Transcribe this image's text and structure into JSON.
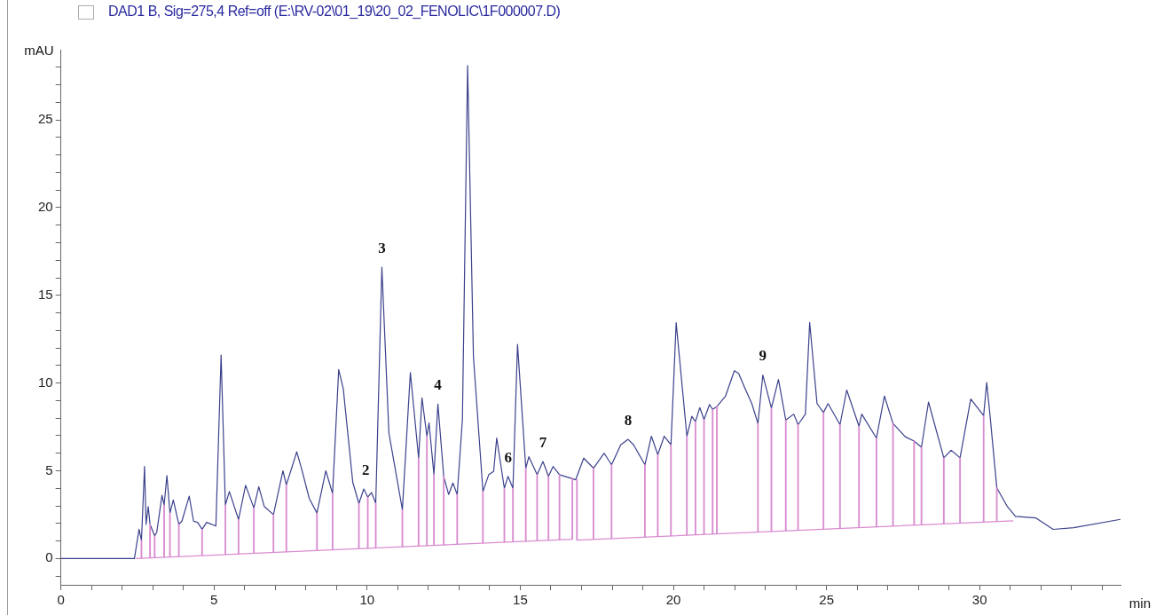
{
  "chart_data": {
    "type": "line",
    "title": "DAD1 B, Sig=275,4 Ref=off (E:\\RV-02\\01_19\\20_02_FENOLIC\\1F000007.D)",
    "xlabel": "min",
    "ylabel": "mAU",
    "grid": false,
    "legend": false,
    "marker": "none",
    "line_style": "solid",
    "xlim": [
      0,
      34.6
    ],
    "ylim": [
      -1.5,
      29
    ],
    "xticks": [
      0,
      {
        "value": 1,
        "label": null
      },
      {
        "value": 2,
        "label": null
      },
      {
        "value": 3,
        "label": null
      },
      {
        "value": 4,
        "label": null
      },
      5,
      {
        "value": 6,
        "label": null
      },
      {
        "value": 7,
        "label": null
      },
      {
        "value": 8,
        "label": null
      },
      {
        "value": 9,
        "label": null
      },
      10,
      {
        "value": 11,
        "label": null
      },
      {
        "value": 12,
        "label": null
      },
      {
        "value": 13,
        "label": null
      },
      {
        "value": 14,
        "label": null
      },
      15,
      {
        "value": 16,
        "label": null
      },
      {
        "value": 17,
        "label": null
      },
      {
        "value": 18,
        "label": null
      },
      {
        "value": 19,
        "label": null
      },
      20,
      {
        "value": 21,
        "label": null
      },
      {
        "value": 22,
        "label": null
      },
      {
        "value": 23,
        "label": null
      },
      {
        "value": 24,
        "label": null
      },
      25,
      {
        "value": 26,
        "label": null
      },
      {
        "value": 27,
        "label": null
      },
      {
        "value": 28,
        "label": null
      },
      {
        "value": 29,
        "label": null
      },
      30,
      {
        "value": 31,
        "label": null
      },
      {
        "value": 32,
        "label": null
      },
      {
        "value": 33,
        "label": null
      },
      {
        "value": 34,
        "label": null
      }
    ],
    "yticks": [
      {
        "value": -1,
        "label": null
      },
      0,
      {
        "value": 1,
        "label": null
      },
      {
        "value": 2,
        "label": null
      },
      {
        "value": 3,
        "label": null
      },
      {
        "value": 4,
        "label": null
      },
      5,
      {
        "value": 6,
        "label": null
      },
      {
        "value": 7,
        "label": null
      },
      {
        "value": 8,
        "label": null
      },
      {
        "value": 9,
        "label": null
      },
      10,
      {
        "value": 11,
        "label": null
      },
      {
        "value": 12,
        "label": null
      },
      {
        "value": 13,
        "label": null
      },
      {
        "value": 14,
        "label": null
      },
      15,
      {
        "value": 16,
        "label": null
      },
      {
        "value": 17,
        "label": null
      },
      {
        "value": 18,
        "label": null
      },
      {
        "value": 19,
        "label": null
      },
      20,
      {
        "value": 21,
        "label": null
      },
      {
        "value": 22,
        "label": null
      },
      {
        "value": 23,
        "label": null
      },
      {
        "value": 24,
        "label": null
      },
      25,
      {
        "value": 26,
        "label": null
      },
      {
        "value": 27,
        "label": null
      },
      {
        "value": 28,
        "label": null
      }
    ],
    "series": [
      {
        "color": "#3c418c",
        "x": [
          0,
          2.4,
          2.55,
          2.63,
          2.73,
          2.78,
          2.85,
          2.91,
          3.06,
          3.13,
          3.3,
          3.37,
          3.46,
          3.56,
          3.67,
          3.85,
          3.95,
          4.19,
          4.33,
          4.46,
          4.61,
          4.76,
          5.06,
          5.23,
          5.37,
          5.5,
          5.8,
          6.03,
          6.3,
          6.46,
          6.64,
          6.94,
          7.25,
          7.36,
          7.55,
          7.7,
          7.85,
          8.11,
          8.36,
          8.65,
          8.87,
          9.07,
          9.22,
          9.53,
          9.73,
          9.89,
          10.02,
          10.14,
          10.28,
          10.48,
          10.71,
          11.15,
          11.41,
          11.68,
          11.79,
          11.95,
          12.02,
          12.18,
          12.31,
          12.5,
          12.66,
          12.8,
          12.94,
          13.11,
          13.28,
          13.47,
          13.78,
          13.97,
          14.13,
          14.23,
          14.48,
          14.6,
          14.76,
          14.91,
          15.18,
          15.28,
          15.55,
          15.74,
          15.92,
          16.07,
          16.28,
          16.81,
          17.07,
          17.39,
          17.74,
          17.98,
          18.28,
          18.52,
          18.7,
          19.07,
          19.28,
          19.49,
          19.7,
          19.92,
          20.09,
          20.44,
          20.6,
          20.72,
          20.86,
          21.0,
          21.18,
          21.28,
          21.42,
          21.7,
          21.99,
          22.13,
          22.32,
          22.56,
          22.76,
          22.92,
          23.2,
          23.43,
          23.67,
          23.93,
          24.07,
          24.31,
          24.45,
          24.69,
          24.9,
          25.05,
          25.44,
          25.66,
          26.06,
          26.15,
          26.63,
          26.89,
          27.17,
          27.57,
          27.86,
          28.1,
          28.33,
          28.83,
          29.07,
          29.36,
          29.71,
          30.13,
          30.23,
          30.34,
          30.56,
          30.89,
          31.17,
          31.84,
          32.4,
          33.07,
          34.6
        ],
        "values": [
          0,
          0,
          1.67,
          1.03,
          5.25,
          1.95,
          2.96,
          1.95,
          1.29,
          1.5,
          3.6,
          3.04,
          4.73,
          2.59,
          3.34,
          1.95,
          2.13,
          3.55,
          2.13,
          2.06,
          1.67,
          2.06,
          1.85,
          11.6,
          3.05,
          3.82,
          2.22,
          4.17,
          2.88,
          4.1,
          2.96,
          2.5,
          5.0,
          4.2,
          5.24,
          6.08,
          5.17,
          3.42,
          2.59,
          5.0,
          3.7,
          10.77,
          9.67,
          4.34,
          3.14,
          3.96,
          3.5,
          3.76,
          3.15,
          16.6,
          7.15,
          2.78,
          10.6,
          5.72,
          9.16,
          6.97,
          7.73,
          4.78,
          8.8,
          4.68,
          3.65,
          4.3,
          3.65,
          7.92,
          28.1,
          11.5,
          3.82,
          4.78,
          4.96,
          6.87,
          4.0,
          4.68,
          4.0,
          12.2,
          5.15,
          5.8,
          4.78,
          5.53,
          4.68,
          5.24,
          4.78,
          4.49,
          5.72,
          5.15,
          6.0,
          5.34,
          6.48,
          6.79,
          6.48,
          5.34,
          6.97,
          5.92,
          6.97,
          6.48,
          13.44,
          6.97,
          8.1,
          7.8,
          8.6,
          7.92,
          8.78,
          8.5,
          8.66,
          9.25,
          10.7,
          10.55,
          9.77,
          8.83,
          7.7,
          10.46,
          8.57,
          10.2,
          7.89,
          8.23,
          7.63,
          8.23,
          13.46,
          8.83,
          8.32,
          8.83,
          7.63,
          9.6,
          7.54,
          8.23,
          6.86,
          9.26,
          7.7,
          6.94,
          6.69,
          6.34,
          8.92,
          5.74,
          6.17,
          5.74,
          9.09,
          8.14,
          10.03,
          8.14,
          4.03,
          3.0,
          2.4,
          2.31,
          1.66,
          1.76,
          2.23
        ]
      },
      {
        "color": "#d98cd0",
        "x": [
          2.45,
          16.7,
          16.75,
          16.85,
          31.1
        ],
        "values": [
          0,
          1.1,
          null,
          1.05,
          2.15
        ]
      },
      {
        "type": "bar",
        "color": "#d98cd0",
        "x": [
          2.63,
          2.91,
          3.06,
          3.37,
          3.56,
          3.85,
          4.61,
          5.37,
          5.8,
          6.3,
          6.94,
          7.36,
          8.36,
          8.87,
          9.73,
          10.02,
          10.28,
          11.15,
          11.68,
          11.95,
          12.18,
          12.5,
          12.94,
          13.78,
          14.48,
          14.76,
          15.18,
          15.55,
          15.92,
          16.28,
          16.7,
          16.85,
          17.39,
          17.98,
          19.07,
          19.49,
          19.92,
          20.44,
          20.72,
          21.0,
          21.28,
          21.42,
          22.76,
          23.2,
          23.67,
          24.07,
          24.9,
          25.44,
          26.06,
          26.63,
          27.17,
          27.86,
          28.1,
          28.83,
          29.36,
          30.13,
          30.56
        ],
        "base": [
          0.01,
          0.04,
          0.05,
          0.07,
          0.09,
          0.11,
          0.17,
          0.22,
          0.26,
          0.3,
          0.35,
          0.38,
          0.46,
          0.49,
          0.56,
          0.58,
          0.6,
          0.67,
          0.71,
          0.73,
          0.75,
          0.77,
          0.81,
          0.87,
          0.93,
          0.95,
          0.98,
          1.01,
          1.04,
          1.06,
          1.1,
          1.05,
          1.09,
          1.14,
          1.22,
          1.26,
          1.29,
          1.33,
          1.35,
          1.37,
          1.39,
          1.4,
          1.51,
          1.54,
          1.58,
          1.61,
          1.67,
          1.71,
          1.76,
          1.8,
          1.85,
          1.9,
          1.92,
          1.98,
          2.02,
          2.08,
          2.11
        ],
        "values": [
          1.02,
          1.91,
          1.24,
          2.97,
          2.5,
          1.84,
          1.5,
          2.83,
          1.96,
          2.58,
          2.15,
          3.82,
          2.13,
          3.21,
          2.58,
          2.92,
          2.55,
          2.11,
          5.01,
          6.24,
          4.03,
          3.91,
          2.84,
          2.95,
          3.07,
          3.05,
          4.17,
          3.77,
          3.64,
          3.72,
          3.5,
          3.45,
          4.06,
          4.2,
          4.12,
          4.66,
          5.19,
          5.64,
          6.45,
          6.55,
          7.11,
          7.26,
          6.19,
          7.03,
          6.31,
          6.02,
          6.65,
          5.92,
          5.78,
          5.06,
          5.85,
          4.79,
          4.42,
          3.76,
          3.72,
          6.06,
          1.92
        ]
      }
    ],
    "annotations": [
      {
        "text": "2",
        "x": 9.95,
        "y": 3.96
      },
      {
        "text": "3",
        "x": 10.48,
        "y": 16.6
      },
      {
        "text": "4",
        "x": 12.31,
        "y": 8.8
      },
      {
        "text": "6",
        "x": 14.6,
        "y": 4.68
      },
      {
        "text": "7",
        "x": 15.74,
        "y": 5.53
      },
      {
        "text": "8",
        "x": 18.52,
        "y": 6.79
      },
      {
        "text": "9",
        "x": 22.92,
        "y": 10.46
      }
    ]
  }
}
